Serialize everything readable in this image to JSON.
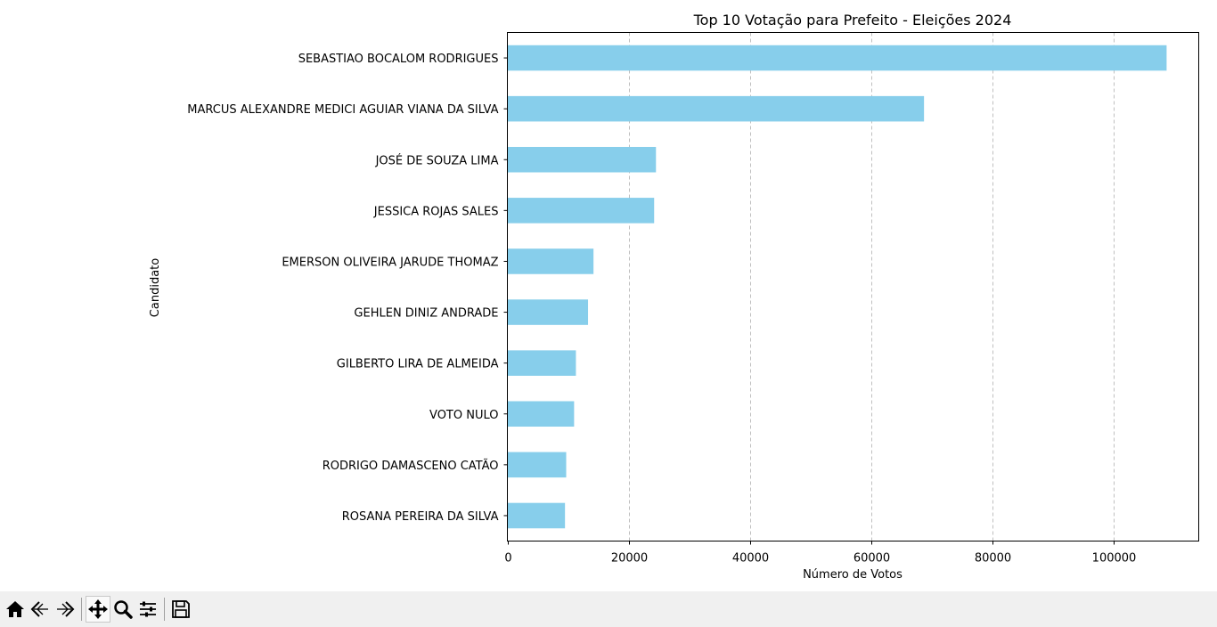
{
  "chart_data": {
    "type": "bar",
    "orientation": "horizontal",
    "title": "Top 10 Votação para Prefeito - Eleições 2024",
    "xlabel": "Número de Votos",
    "ylabel": "Candidato",
    "categories": [
      "SEBASTIAO BOCALOM RODRIGUES",
      "MARCUS ALEXANDRE MEDICI AGUIAR VIANA DA SILVA",
      "JOSÉ DE SOUZA LIMA",
      "JESSICA ROJAS SALES",
      "EMERSON OLIVEIRA JARUDE THOMAZ",
      "GEHLEN DINIZ ANDRADE",
      "GILBERTO LIRA DE ALMEIDA",
      "VOTO NULO",
      "RODRIGO DAMASCENO CATÃO",
      "ROSANA PEREIRA DA SILVA"
    ],
    "values": [
      108700,
      68700,
      24500,
      24200,
      14200,
      13300,
      11300,
      11000,
      9700,
      9500
    ],
    "xticks": [
      0,
      20000,
      40000,
      60000,
      80000,
      100000
    ],
    "xticklabels": [
      "0",
      "20000",
      "40000",
      "60000",
      "80000",
      "100000"
    ],
    "xlim": [
      0,
      114000
    ],
    "grid": "x-dashed",
    "bar_color": "#87ceeb"
  },
  "toolbar": {
    "buttons": [
      {
        "name": "home-icon"
      },
      {
        "name": "back-icon"
      },
      {
        "name": "forward-icon"
      },
      {
        "name": "pan-icon"
      },
      {
        "name": "zoom-icon"
      },
      {
        "name": "configure-subplots-icon"
      },
      {
        "name": "save-icon"
      }
    ]
  }
}
